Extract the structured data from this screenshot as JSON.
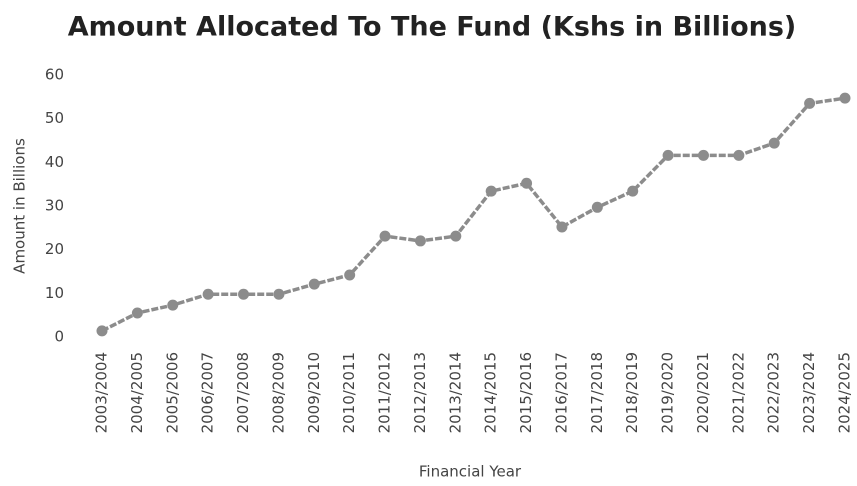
{
  "chart_data": {
    "type": "line",
    "title": "Amount Allocated To The Fund (Kshs in Billions)",
    "x_label": "Financial Year",
    "y_label": "Amount in Billions",
    "categories": [
      "2003/2004",
      "2004/2005",
      "2005/2006",
      "2006/2007",
      "2007/2008",
      "2008/2009",
      "2009/2010",
      "2010/2011",
      "2011/2012",
      "2012/2013",
      "2013/2014",
      "2014/2015",
      "2015/2016",
      "2016/2017",
      "2017/2018",
      "2018/2019",
      "2019/2020",
      "2020/2021",
      "2021/2022",
      "2022/2023",
      "2023/2024",
      "2024/2025"
    ],
    "values": [
      1.4,
      5.5,
      7.3,
      9.8,
      9.8,
      9.8,
      12.1,
      14.2,
      23.1,
      22,
      23.1,
      33.4,
      35.2,
      25.2,
      29.7,
      33.4,
      41.6,
      41.6,
      41.6,
      44.4,
      53.5,
      54.7
    ],
    "color": "#8c8c8c",
    "ylim": [
      0,
      60
    ],
    "yticks": [
      0,
      10,
      20,
      30,
      40,
      50,
      60
    ],
    "grid": false
  }
}
